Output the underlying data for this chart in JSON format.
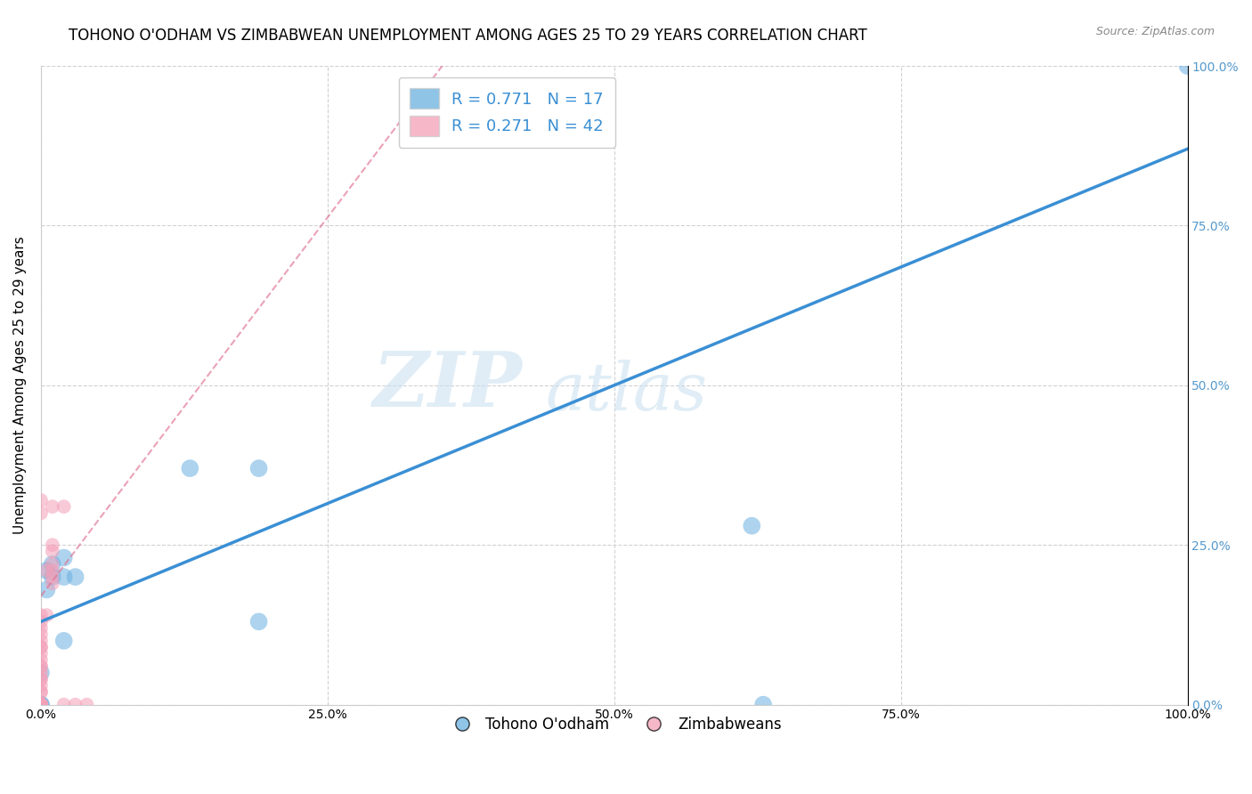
{
  "title": "TOHONO O'ODHAM VS ZIMBABWEAN UNEMPLOYMENT AMONG AGES 25 TO 29 YEARS CORRELATION CHART",
  "source": "Source: ZipAtlas.com",
  "ylabel": "Unemployment Among Ages 25 to 29 years",
  "xlim": [
    0,
    1.0
  ],
  "ylim": [
    0,
    1.0
  ],
  "xticks": [
    0.0,
    0.25,
    0.5,
    0.75,
    1.0
  ],
  "yticks": [
    0.0,
    0.25,
    0.5,
    0.75,
    1.0
  ],
  "xticklabels": [
    "0.0%",
    "25.0%",
    "50.0%",
    "75.0%",
    "100.0%"
  ],
  "yticklabels": [
    "0.0%",
    "25.0%",
    "50.0%",
    "75.0%",
    "100.0%"
  ],
  "blue_color": "#6ab0e0",
  "pink_color": "#f4a0b8",
  "blue_line_color": "#3a8fd4",
  "pink_line_color": "#e07090",
  "legend_R1": "0.771",
  "legend_N1": "17",
  "legend_R2": "0.271",
  "legend_N2": "42",
  "legend_label1": "Tohono O'odham",
  "legend_label2": "Zimbabweans",
  "watermark_zip": "ZIP",
  "watermark_atlas": "atlas",
  "blue_line_x0": 0.0,
  "blue_line_y0": 0.13,
  "blue_line_x1": 1.0,
  "blue_line_y1": 0.87,
  "pink_line_x0": 0.0,
  "pink_line_y0": 0.17,
  "pink_line_x1": 0.35,
  "pink_line_y1": 1.0,
  "blue_points_x": [
    0.0,
    0.0,
    0.005,
    0.005,
    0.01,
    0.01,
    0.02,
    0.02,
    0.02,
    0.03,
    0.13,
    0.19,
    0.19,
    0.62,
    1.0,
    0.63,
    0.0
  ],
  "blue_points_y": [
    0.0,
    0.05,
    0.18,
    0.21,
    0.2,
    0.22,
    0.2,
    0.23,
    0.1,
    0.2,
    0.37,
    0.37,
    0.13,
    0.28,
    1.0,
    0.0,
    0.0
  ],
  "pink_points_x": [
    0.0,
    0.0,
    0.0,
    0.0,
    0.0,
    0.0,
    0.0,
    0.0,
    0.0,
    0.0,
    0.0,
    0.0,
    0.0,
    0.0,
    0.0,
    0.0,
    0.0,
    0.0,
    0.0,
    0.0,
    0.0,
    0.0,
    0.0,
    0.0,
    0.0,
    0.0,
    0.0,
    0.0,
    0.005,
    0.005,
    0.01,
    0.01,
    0.01,
    0.01,
    0.01,
    0.01,
    0.01,
    0.02,
    0.02,
    0.03,
    0.04,
    0.0
  ],
  "pink_points_y": [
    0.0,
    0.0,
    0.0,
    0.0,
    0.0,
    0.0,
    0.0,
    0.0,
    0.0,
    0.0,
    0.02,
    0.02,
    0.03,
    0.04,
    0.04,
    0.05,
    0.06,
    0.06,
    0.07,
    0.08,
    0.09,
    0.09,
    0.1,
    0.11,
    0.12,
    0.13,
    0.14,
    0.3,
    0.14,
    0.21,
    0.19,
    0.2,
    0.21,
    0.22,
    0.24,
    0.25,
    0.31,
    0.31,
    0.0,
    0.0,
    0.0,
    0.32
  ],
  "blue_scatter_size": 200,
  "pink_scatter_size": 130,
  "grid_color": "#cccccc",
  "background_color": "#ffffff",
  "title_fontsize": 12,
  "axis_label_fontsize": 11,
  "tick_fontsize": 10,
  "right_tick_color": "#5599cc"
}
